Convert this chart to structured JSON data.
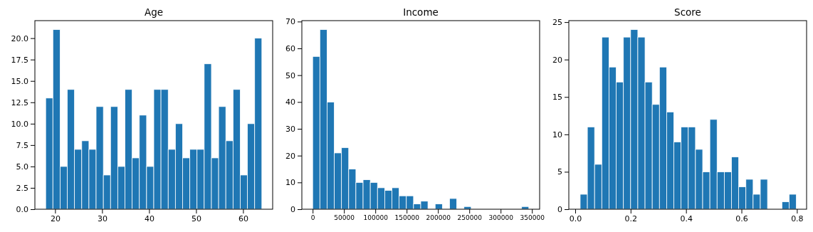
{
  "chart_data": [
    {
      "type": "histogram",
      "title": "Age",
      "color": "#1f77b4",
      "bins": [
        18,
        19.53,
        21.07,
        22.6,
        24.13,
        25.67,
        27.2,
        28.73,
        30.27,
        31.8,
        33.33,
        34.87,
        36.4,
        37.93,
        39.47,
        41,
        42.53,
        44.07,
        45.6,
        47.13,
        48.67,
        50.2,
        51.73,
        53.27,
        54.8,
        56.33,
        57.87,
        59.4,
        60.93,
        62.47,
        64
      ],
      "values": [
        13,
        21,
        5,
        14,
        7,
        8,
        7,
        12,
        4,
        12,
        5,
        14,
        6,
        11,
        5,
        14,
        14,
        7,
        10,
        6,
        7,
        7,
        17,
        6,
        12,
        8,
        14,
        4,
        10,
        20
      ],
      "xlim": [
        15.7,
        66.3
      ],
      "xticks": [
        20,
        30,
        40,
        50,
        60
      ],
      "ylim": [
        0,
        22.05
      ],
      "yticks": [
        {
          "value": 0,
          "label": "0.0"
        },
        {
          "value": 2.5,
          "label": "2.5"
        },
        {
          "value": 5,
          "label": "5.0"
        },
        {
          "value": 7.5,
          "label": "7.5"
        },
        {
          "value": 10,
          "label": "10.0"
        },
        {
          "value": 12.5,
          "label": "12.5"
        },
        {
          "value": 15,
          "label": "15.0"
        },
        {
          "value": 17.5,
          "label": "17.5"
        },
        {
          "value": 20,
          "label": "20.0"
        }
      ]
    },
    {
      "type": "histogram",
      "title": "Income",
      "color": "#1f77b4",
      "bins": [
        0,
        11500,
        23000,
        34500,
        46000,
        57500,
        69000,
        80500,
        92000,
        103500,
        115000,
        126500,
        138000,
        149500,
        161000,
        172500,
        184000,
        195500,
        207000,
        218500,
        230000,
        241500,
        253000,
        264500,
        276000,
        287500,
        299000,
        310500,
        322000,
        333500,
        345000
      ],
      "values": [
        57,
        67,
        40,
        21,
        23,
        15,
        10,
        11,
        10,
        8,
        7,
        8,
        5,
        5,
        2,
        3,
        0,
        2,
        0,
        4,
        0,
        1,
        0,
        0,
        0,
        0,
        0,
        0,
        0,
        1
      ],
      "xlim": [
        -17250,
        362250
      ],
      "xticks": [
        0,
        50000,
        100000,
        150000,
        200000,
        250000,
        300000,
        350000
      ],
      "ylim": [
        0,
        70.35
      ],
      "yticks": [
        0,
        10,
        20,
        30,
        40,
        50,
        60,
        70
      ]
    },
    {
      "type": "histogram",
      "title": "Score",
      "color": "#1f77b4",
      "bins": [
        0.018,
        0.044,
        0.07,
        0.096,
        0.122,
        0.148,
        0.174,
        0.2,
        0.226,
        0.252,
        0.278,
        0.304,
        0.33,
        0.356,
        0.382,
        0.408,
        0.434,
        0.46,
        0.486,
        0.512,
        0.538,
        0.564,
        0.59,
        0.616,
        0.642,
        0.668,
        0.694,
        0.72,
        0.746,
        0.772,
        0.798
      ],
      "values": [
        2,
        11,
        6,
        23,
        19,
        17,
        23,
        24,
        23,
        17,
        14,
        19,
        13,
        9,
        11,
        11,
        8,
        5,
        12,
        5,
        5,
        7,
        3,
        4,
        2,
        4,
        0,
        0,
        1,
        2
      ],
      "xlim": [
        -0.023,
        0.835
      ],
      "xticks": [
        {
          "value": 0,
          "label": "0.0"
        },
        {
          "value": 0.2,
          "label": "0.2"
        },
        {
          "value": 0.4,
          "label": "0.4"
        },
        {
          "value": 0.6,
          "label": "0.6"
        },
        {
          "value": 0.8,
          "label": "0.8"
        }
      ],
      "ylim": [
        0,
        25.2
      ],
      "yticks": [
        0,
        5,
        10,
        15,
        20,
        25
      ]
    }
  ]
}
